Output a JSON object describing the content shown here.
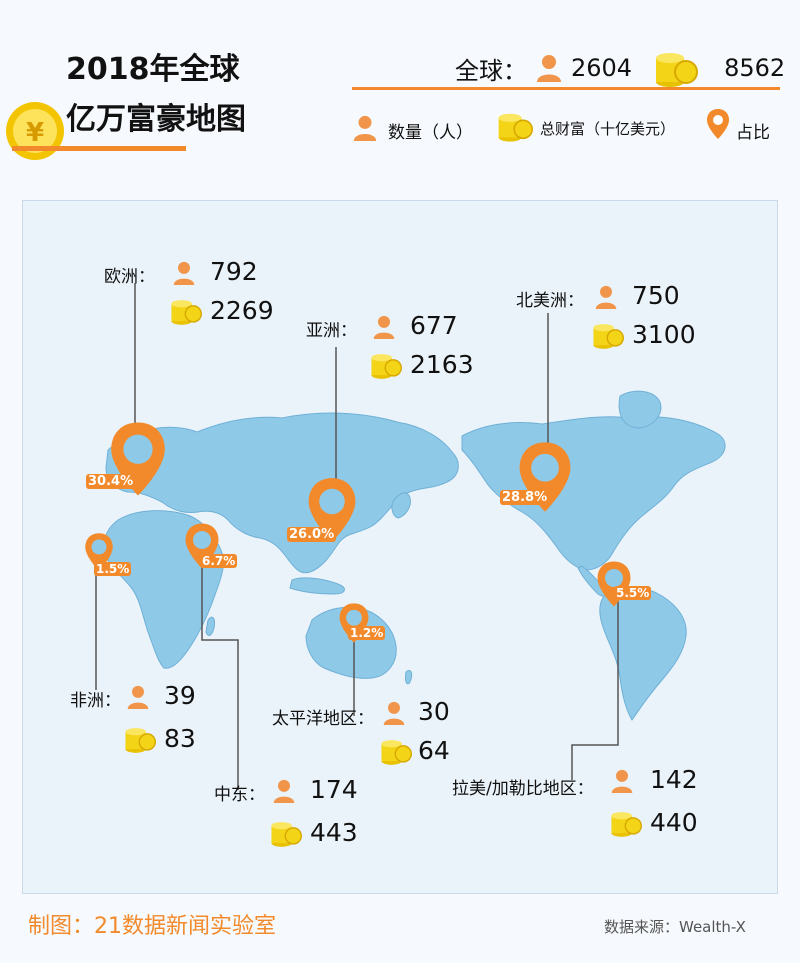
{
  "title": {
    "line1": "2018年全球",
    "line2": "亿万富豪地图"
  },
  "summary": {
    "label": "全球：",
    "count": "2604",
    "wealth": "8562"
  },
  "legend": {
    "count_label": "数量（人）",
    "wealth_label": "总财富（十亿美元）",
    "share_label": "占比"
  },
  "regions": {
    "europe": {
      "name": "欧洲：",
      "count": "792",
      "wealth": "2269",
      "share": "30.4%"
    },
    "asia": {
      "name": "亚洲：",
      "count": "677",
      "wealth": "2163",
      "share": "26.0%"
    },
    "north_america": {
      "name": "北美洲：",
      "count": "750",
      "wealth": "3100",
      "share": "28.8%"
    },
    "africa": {
      "name": "非洲：",
      "count": "39",
      "wealth": "83",
      "share": "1.5%"
    },
    "middle_east": {
      "name": "中东：",
      "count": "174",
      "wealth": "443",
      "share": "6.7%"
    },
    "pacific": {
      "name": "太平洋地区：",
      "count": "30",
      "wealth": "64",
      "share": "1.2%"
    },
    "latin_america": {
      "name": "拉美/加勒比地区：",
      "count": "142",
      "wealth": "440",
      "share": "5.5%"
    }
  },
  "footer": {
    "credit": "制图：21数据新闻实验室",
    "source": "数据来源：Wealth-X"
  },
  "colors": {
    "accent": "#f28a2b",
    "land": "#8fc9e8",
    "coin": "#f3d417"
  },
  "icons": [
    "coin-icon",
    "person-icon",
    "coin-stack-icon",
    "location-pin-icon"
  ]
}
